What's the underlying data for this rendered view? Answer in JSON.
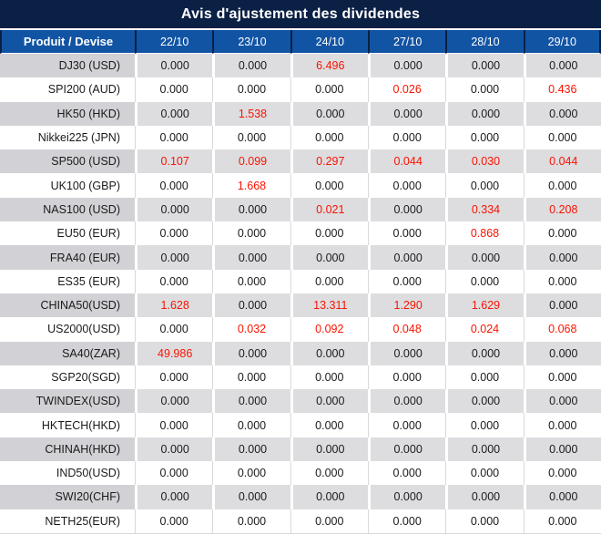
{
  "title": "Avis d'ajustement des dividendes",
  "colors": {
    "title_bg": "#0b2045",
    "header_bg": "#1254a4",
    "header_text": "#ffffff",
    "stripe_label_bg": "#d2d2d6",
    "stripe_value_bg": "#dddde0",
    "negative_red": "#f81400",
    "text": "#1a1a1a",
    "grid_light": "#d9d9d9"
  },
  "table": {
    "columns": [
      "Produit / Devise",
      "22/10",
      "23/10",
      "24/10",
      "27/10",
      "28/10",
      "29/10"
    ],
    "rows": [
      {
        "product": "DJ30 (USD)",
        "values": [
          "0.000",
          "0.000",
          "6.496",
          "0.000",
          "0.000",
          "0.000"
        ],
        "red_indices": [
          2
        ]
      },
      {
        "product": "SPI200 (AUD)",
        "values": [
          "0.000",
          "0.000",
          "0.000",
          "0.026",
          "0.000",
          "0.436"
        ],
        "red_indices": [
          3,
          5
        ]
      },
      {
        "product": "HK50 (HKD)",
        "values": [
          "0.000",
          "1.538",
          "0.000",
          "0.000",
          "0.000",
          "0.000"
        ],
        "red_indices": [
          1
        ]
      },
      {
        "product": "Nikkei225 (JPN)",
        "values": [
          "0.000",
          "0.000",
          "0.000",
          "0.000",
          "0.000",
          "0.000"
        ],
        "red_indices": []
      },
      {
        "product": "SP500 (USD)",
        "values": [
          "0.107",
          "0.099",
          "0.297",
          "0.044",
          "0.030",
          "0.044"
        ],
        "red_indices": [
          0,
          1,
          2,
          3,
          4,
          5
        ]
      },
      {
        "product": "UK100 (GBP)",
        "values": [
          "0.000",
          "1.668",
          "0.000",
          "0.000",
          "0.000",
          "0.000"
        ],
        "red_indices": [
          1
        ]
      },
      {
        "product": "NAS100 (USD)",
        "values": [
          "0.000",
          "0.000",
          "0.021",
          "0.000",
          "0.334",
          "0.208"
        ],
        "red_indices": [
          2,
          4,
          5
        ]
      },
      {
        "product": "EU50 (EUR)",
        "values": [
          "0.000",
          "0.000",
          "0.000",
          "0.000",
          "0.868",
          "0.000"
        ],
        "red_indices": [
          4
        ]
      },
      {
        "product": "FRA40 (EUR)",
        "values": [
          "0.000",
          "0.000",
          "0.000",
          "0.000",
          "0.000",
          "0.000"
        ],
        "red_indices": []
      },
      {
        "product": "ES35 (EUR)",
        "values": [
          "0.000",
          "0.000",
          "0.000",
          "0.000",
          "0.000",
          "0.000"
        ],
        "red_indices": []
      },
      {
        "product": "CHINA50(USD)",
        "values": [
          "1.628",
          "0.000",
          "13.311",
          "1.290",
          "1.629",
          "0.000"
        ],
        "red_indices": [
          0,
          2,
          3,
          4
        ]
      },
      {
        "product": "US2000(USD)",
        "values": [
          "0.000",
          "0.032",
          "0.092",
          "0.048",
          "0.024",
          "0.068"
        ],
        "red_indices": [
          1,
          2,
          3,
          4,
          5
        ]
      },
      {
        "product": "SA40(ZAR)",
        "values": [
          "49.986",
          "0.000",
          "0.000",
          "0.000",
          "0.000",
          "0.000"
        ],
        "red_indices": [
          0
        ]
      },
      {
        "product": "SGP20(SGD)",
        "values": [
          "0.000",
          "0.000",
          "0.000",
          "0.000",
          "0.000",
          "0.000"
        ],
        "red_indices": []
      },
      {
        "product": "TWINDEX(USD)",
        "values": [
          "0.000",
          "0.000",
          "0.000",
          "0.000",
          "0.000",
          "0.000"
        ],
        "red_indices": []
      },
      {
        "product": "HKTECH(HKD)",
        "values": [
          "0.000",
          "0.000",
          "0.000",
          "0.000",
          "0.000",
          "0.000"
        ],
        "red_indices": []
      },
      {
        "product": "CHINAH(HKD)",
        "values": [
          "0.000",
          "0.000",
          "0.000",
          "0.000",
          "0.000",
          "0.000"
        ],
        "red_indices": []
      },
      {
        "product": "IND50(USD)",
        "values": [
          "0.000",
          "0.000",
          "0.000",
          "0.000",
          "0.000",
          "0.000"
        ],
        "red_indices": []
      },
      {
        "product": "SWI20(CHF)",
        "values": [
          "0.000",
          "0.000",
          "0.000",
          "0.000",
          "0.000",
          "0.000"
        ],
        "red_indices": []
      },
      {
        "product": "NETH25(EUR)",
        "values": [
          "0.000",
          "0.000",
          "0.000",
          "0.000",
          "0.000",
          "0.000"
        ],
        "red_indices": []
      }
    ]
  }
}
